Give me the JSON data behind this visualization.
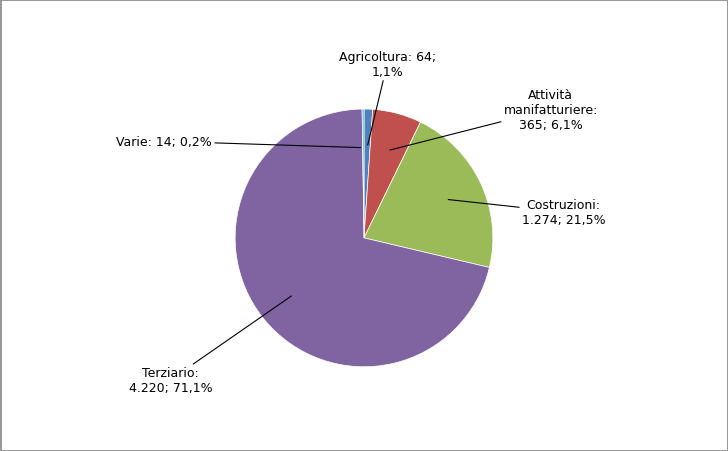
{
  "labels": [
    "Agricoltura",
    "Attività\nmanifatturiere",
    "Costruzioni",
    "Terziario",
    "Varie"
  ],
  "values": [
    64,
    365,
    1274,
    4220,
    14
  ],
  "percentages": [
    "1,1%",
    "6,1%",
    "21,5%",
    "71,1%",
    "0,2%"
  ],
  "counts": [
    "64",
    "365",
    "1.274",
    "4.220",
    "14"
  ],
  "colors": [
    "#4472C4",
    "#C0504D",
    "#9BBB59",
    "#8064A2",
    "#4472C4"
  ],
  "slice_colors": [
    "#5B9BD5",
    "#C0504D",
    "#9BBB59",
    "#7B5EA7",
    "#4472C4"
  ],
  "background_color": "#FFFFFF",
  "border_color": "#AAAAAA",
  "startangle": 90,
  "figsize": [
    7.28,
    4.52
  ],
  "dpi": 100
}
